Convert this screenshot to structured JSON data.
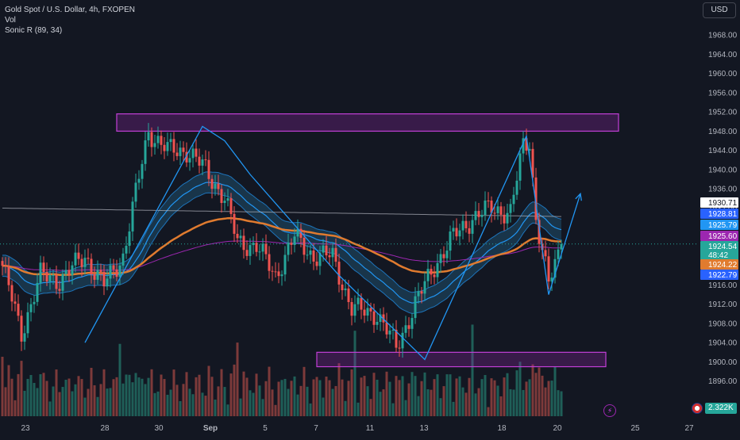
{
  "header": {
    "symbol_line": "Gold Spot / U.S. Dollar, 4h, FXOPEN",
    "vol_label": "Vol",
    "indicator_label": "Sonic R (89, 34)"
  },
  "currency_button": "USD",
  "volume_badge": "2.322K",
  "colors": {
    "background": "#131722",
    "bull": "#26a69a",
    "bear": "#ef5350",
    "vol_bull": "#1f5f58",
    "vol_bear": "#7d3a3a",
    "ema89": "#e07b2f",
    "dragon": "#2196f3",
    "dragon_fill": "#1f4f6b",
    "sma_white": "#b2b5be",
    "sma_purple": "#9c27b0",
    "zone": "#9c27b0",
    "arrow": "#2196f3"
  },
  "price_axis": {
    "ticks": [
      "1968.00",
      "1964.00",
      "1960.00",
      "1956.00",
      "1952.00",
      "1948.00",
      "1944.00",
      "1940.00",
      "1936.00",
      "1932.00",
      "1928.00",
      "1924.00",
      "1920.00",
      "1916.00",
      "1912.00",
      "1908.00",
      "1904.00",
      "1900.00",
      "1896.00"
    ],
    "labels": [
      {
        "text": "1930.71",
        "bg": "#ffffff",
        "fg": "#131722"
      },
      {
        "text": "1928.81",
        "bg": "#2962ff",
        "fg": "#ffffff"
      },
      {
        "text": "1925.79",
        "bg": "#2196f3",
        "fg": "#ffffff"
      },
      {
        "text": "1925.60",
        "bg": "#9c27b0",
        "fg": "#ffffff"
      },
      {
        "text": "1924.54",
        "bg": "#26a69a",
        "fg": "#ffffff"
      },
      {
        "text": "48:42",
        "bg": "#26a69a",
        "fg": "#ffffff"
      },
      {
        "text": "1924.22",
        "bg": "#e07b2f",
        "fg": "#ffffff"
      },
      {
        "text": "1922.79",
        "bg": "#2962ff",
        "fg": "#ffffff"
      }
    ]
  },
  "chart_data": {
    "type": "candlestick",
    "time_axis": [
      "23",
      "28",
      "30",
      "Sep",
      "5",
      "7",
      "11",
      "13",
      "18",
      "20",
      "25",
      "27"
    ],
    "y_range": [
      1892,
      1971
    ],
    "current_price": 1924.54,
    "candles_close_keypoints": [
      {
        "bar": 0,
        "close": 1920
      },
      {
        "bar": 6,
        "close": 1906
      },
      {
        "bar": 12,
        "close": 1918
      },
      {
        "bar": 18,
        "close": 1917
      },
      {
        "bar": 26,
        "close": 1922
      },
      {
        "bar": 32,
        "close": 1916
      },
      {
        "bar": 38,
        "close": 1922
      },
      {
        "bar": 42,
        "close": 1935
      },
      {
        "bar": 46,
        "close": 1948
      },
      {
        "bar": 52,
        "close": 1944
      },
      {
        "bar": 58,
        "close": 1944
      },
      {
        "bar": 64,
        "close": 1940
      },
      {
        "bar": 70,
        "close": 1934
      },
      {
        "bar": 74,
        "close": 1925
      },
      {
        "bar": 80,
        "close": 1924
      },
      {
        "bar": 86,
        "close": 1918
      },
      {
        "bar": 92,
        "close": 1926
      },
      {
        "bar": 98,
        "close": 1922
      },
      {
        "bar": 104,
        "close": 1922
      },
      {
        "bar": 110,
        "close": 1911
      },
      {
        "bar": 118,
        "close": 1910
      },
      {
        "bar": 124,
        "close": 1903
      },
      {
        "bar": 130,
        "close": 1912
      },
      {
        "bar": 136,
        "close": 1920
      },
      {
        "bar": 142,
        "close": 1926
      },
      {
        "bar": 148,
        "close": 1930
      },
      {
        "bar": 154,
        "close": 1932
      },
      {
        "bar": 160,
        "close": 1931
      },
      {
        "bar": 164,
        "close": 1945
      },
      {
        "bar": 166,
        "close": 1946
      },
      {
        "bar": 168,
        "close": 1930
      },
      {
        "bar": 172,
        "close": 1916
      },
      {
        "bar": 176,
        "close": 1924.54
      }
    ],
    "zones": [
      {
        "name": "resistance",
        "from": 1948,
        "to": 1951.6
      },
      {
        "name": "support",
        "from": 1899,
        "to": 1902
      }
    ],
    "wave_points": [
      {
        "bar": 26,
        "price": 1904
      },
      {
        "bar": 63,
        "price": 1949
      },
      {
        "bar": 70,
        "price": 1946
      },
      {
        "bar": 78,
        "price": 1939
      },
      {
        "bar": 106,
        "price": 1918
      },
      {
        "bar": 133,
        "price": 1900.5
      },
      {
        "bar": 165,
        "price": 1947
      },
      {
        "bar": 172,
        "price": 1914
      },
      {
        "bar": 182,
        "price": 1935
      }
    ],
    "grid": false
  }
}
